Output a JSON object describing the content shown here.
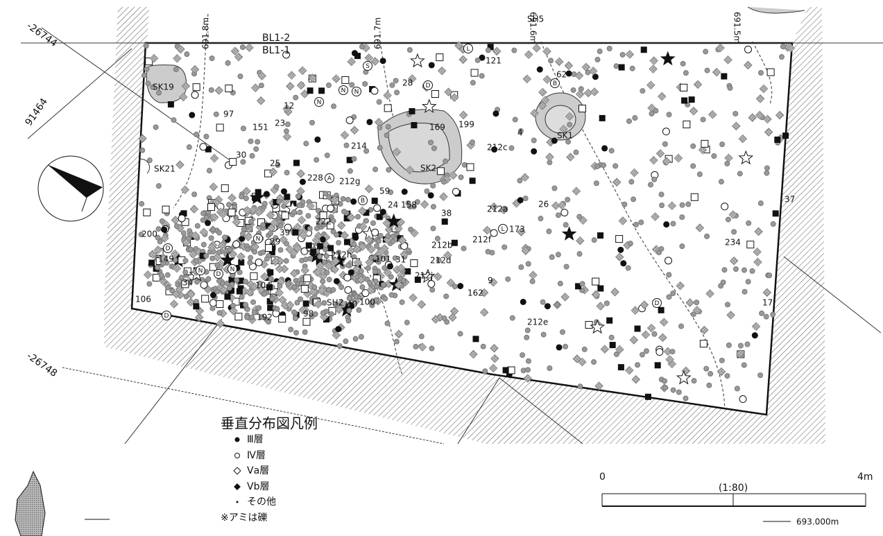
{
  "grid_labels": [
    "-26744",
    "91464",
    "-26748"
  ],
  "baselines": [
    "BL1-2",
    "BL1-1"
  ],
  "contours": [
    "691.8m",
    "691.7m",
    "691.6m",
    "691.5m"
  ],
  "features": [
    "SH5",
    "SK19",
    "SK1",
    "SK2",
    "SK21",
    "SH2"
  ],
  "artifact_labels": [
    "121",
    "62",
    "28",
    "12",
    "97",
    "151",
    "23",
    "169",
    "199",
    "212c",
    "4",
    "214",
    "30",
    "25",
    "228",
    "212g",
    "59",
    "24",
    "158",
    "38",
    "222",
    "212a",
    "26",
    "37",
    "39",
    "29",
    "200",
    "173",
    "212f",
    "212b",
    "212d",
    "212h",
    "101",
    "31",
    "212j",
    "234",
    "149",
    "34",
    "104",
    "9",
    "106",
    "100",
    "40",
    "162",
    "17",
    "98",
    "192",
    "212e"
  ],
  "circled_letters": [
    "S",
    "L",
    "D",
    "N",
    "N",
    "N",
    "B",
    "A",
    "B",
    "N",
    "D",
    "N",
    "D",
    "N",
    "L",
    "D",
    "D"
  ],
  "legend": {
    "title": "垂直分布図凡例",
    "items": [
      "Ⅲ層",
      "Ⅳ層",
      "Ⅴa層",
      "Ⅴb層",
      "その他"
    ],
    "note": "※アミは礫"
  },
  "scale": {
    "start": "0",
    "end": "4m",
    "ratio": "(1:80)"
  },
  "elevation_note": "693.000m"
}
